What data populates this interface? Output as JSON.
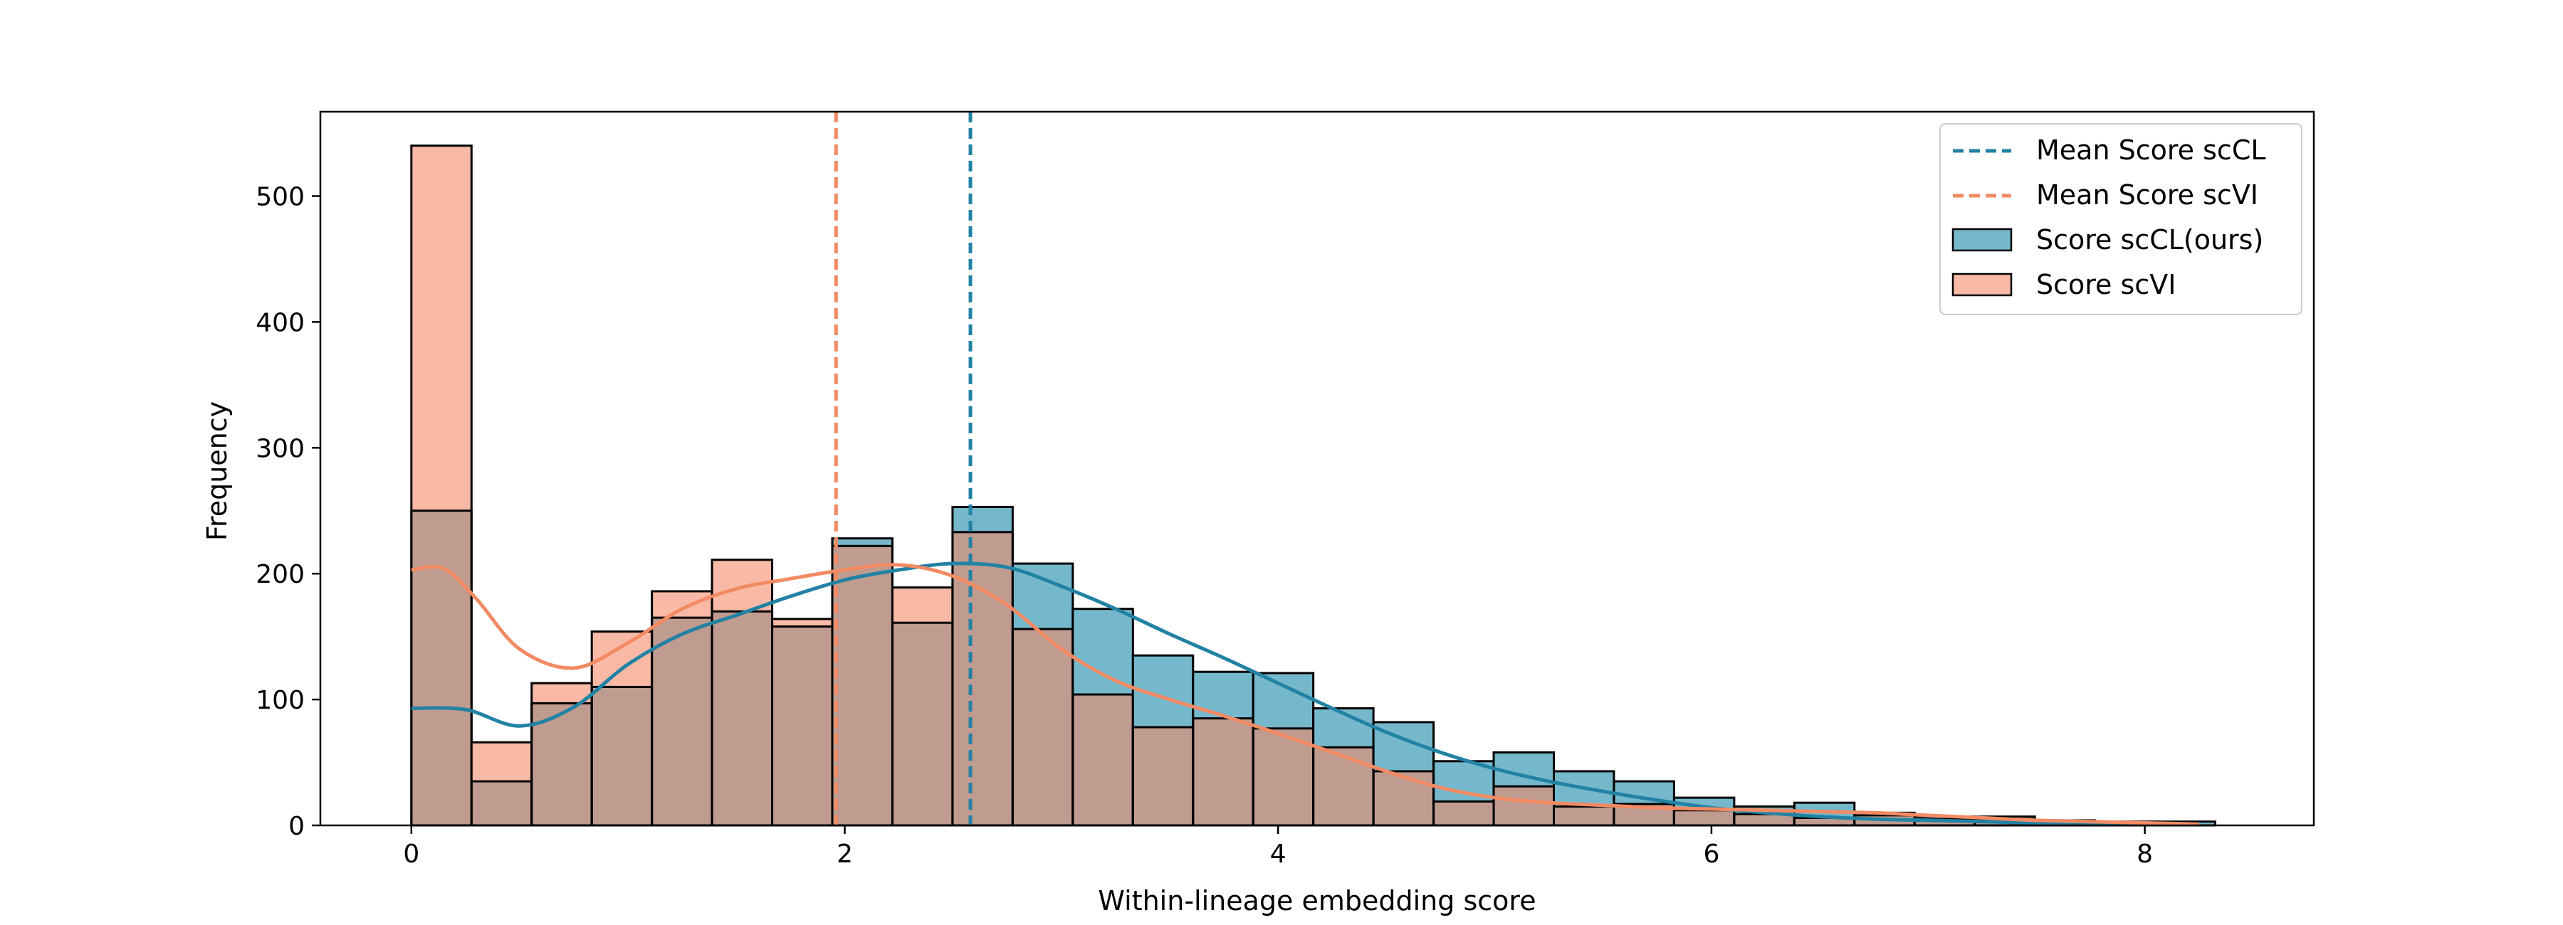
{
  "colors": {
    "sccl": "#2282a4",
    "sccl_bar": "#76b8cb",
    "scvi": "#f28a63",
    "scvi_bar": "#f8baa6",
    "overlap_bar": "#c09b8f"
  },
  "chart_data": {
    "type": "histogram",
    "xlabel": "Within-lineage embedding score",
    "ylabel": "Frequency",
    "xlim": [
      -0.42,
      8.78
    ],
    "ylim": [
      0,
      567
    ],
    "xticks": [
      0,
      2,
      4,
      6,
      8
    ],
    "yticks": [
      0,
      100,
      200,
      300,
      400,
      500
    ],
    "bin_start": 0,
    "bin_width": 0.2775,
    "legend_position": "top-right",
    "series": [
      {
        "name": "Score scCL(ours)",
        "values": [
          250,
          35,
          97,
          110,
          165,
          170,
          158,
          228,
          161,
          253,
          208,
          172,
          135,
          122,
          121,
          93,
          82,
          51,
          58,
          43,
          35,
          22,
          15,
          18,
          10,
          7,
          5,
          4,
          3,
          3
        ]
      },
      {
        "name": "Score scVI",
        "values": [
          540,
          66,
          113,
          154,
          186,
          211,
          164,
          222,
          189,
          233,
          156,
          104,
          78,
          85,
          77,
          62,
          43,
          19,
          31,
          15,
          17,
          12,
          9,
          6,
          8,
          5,
          7,
          2,
          1,
          0
        ]
      }
    ],
    "kde": [
      {
        "name": "KDE scCL",
        "x": [
          0,
          0.25,
          0.5,
          0.75,
          1.0,
          1.25,
          1.5,
          1.75,
          2.0,
          2.25,
          2.5,
          2.75,
          3.0,
          3.25,
          3.5,
          3.75,
          4.0,
          4.25,
          4.5,
          4.75,
          5.0,
          5.25,
          5.5,
          5.75,
          6.0,
          6.25,
          6.5,
          6.75,
          7.0,
          7.25,
          7.5,
          7.75,
          8.0,
          8.25
        ],
        "y": [
          93,
          92,
          79,
          94,
          128,
          152,
          167,
          182,
          195,
          203,
          208,
          205,
          190,
          172,
          152,
          133,
          113,
          93,
          74,
          58,
          45,
          35,
          27,
          20,
          14,
          10,
          7,
          5,
          4,
          3,
          2,
          2,
          1,
          1
        ]
      },
      {
        "name": "KDE scVI",
        "x": [
          0,
          0.15,
          0.3,
          0.5,
          0.75,
          1.0,
          1.25,
          1.5,
          1.75,
          2.0,
          2.25,
          2.5,
          2.75,
          3.0,
          3.25,
          3.5,
          3.75,
          4.0,
          4.25,
          4.5,
          4.75,
          5.0,
          5.25,
          5.5,
          5.75,
          6.0,
          6.25,
          6.5,
          6.75,
          7.0,
          7.25,
          7.5,
          7.75,
          8.0,
          8.25
        ],
        "y": [
          203,
          204,
          180,
          140,
          125,
          145,
          172,
          188,
          196,
          203,
          207,
          198,
          175,
          140,
          115,
          100,
          87,
          73,
          58,
          43,
          30,
          22,
          18,
          16,
          14,
          13,
          12,
          11,
          10,
          8,
          6,
          4,
          3,
          2,
          1
        ]
      }
    ],
    "mean_lines": [
      {
        "name": "Mean Score scCL",
        "x": 2.58
      },
      {
        "name": "Mean Score scVI",
        "x": 1.96
      }
    ]
  }
}
